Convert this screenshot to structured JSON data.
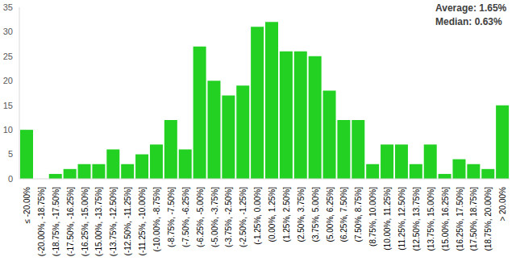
{
  "chart_data": {
    "type": "bar",
    "annotations": [
      "Average: 1.65%",
      "Median: 0.63%"
    ],
    "categories": [
      "≤ -20.00%",
      "(-20.00%, -18.75%]",
      "(-18.75%, -17.50%]",
      "(-17.50%, -16.25%]",
      "(-16.25%, -15.00%]",
      "(-15.00%, -13.75%]",
      "(-13.75%, -12.50%]",
      "(-12.50%, -11.25%]",
      "(-11.25%, -10.00%]",
      "(-10.00%, -8.75%]",
      "(-8.75%, -7.50%]",
      "(-7.50%, -6.25%]",
      "(-6.25%, -5.00%]",
      "(-5.00%, -3.75%]",
      "(-3.75%, -2.50%]",
      "(-2.50%, -1.25%]",
      "(-1.25%, 0.00%]",
      "(0.00%, 1.25%]",
      "(1.25%, 2.50%]",
      "(2.50%, 3.75%]",
      "(3.75%, 5.00%]",
      "(5.00%, 6.25%]",
      "(6.25%, 7.50%]",
      "(7.50%, 8.75%]",
      "(8.75%, 10.00%]",
      "(10.00%, 11.25%]",
      "(11.25%, 12.50%]",
      "(12.50%, 13.75%]",
      "(13.75%, 15.00%]",
      "(15.00%, 16.25%]",
      "(16.25%, 17.50%]",
      "(17.50%, 18.75%]",
      "(18.75%, 20.00%]",
      "> 20.00%"
    ],
    "values": [
      10,
      0,
      1,
      2,
      3,
      3,
      6,
      3,
      5,
      7,
      12,
      6,
      27,
      20,
      17,
      19,
      31,
      32,
      26,
      26,
      25,
      18,
      12,
      12,
      3,
      7,
      7,
      3,
      7,
      1,
      4,
      3,
      2,
      15
    ],
    "color": "#22d122",
    "ylim": [
      0,
      35
    ],
    "yticks": [
      0,
      5,
      10,
      15,
      20,
      25,
      30,
      35
    ],
    "grid": false
  }
}
